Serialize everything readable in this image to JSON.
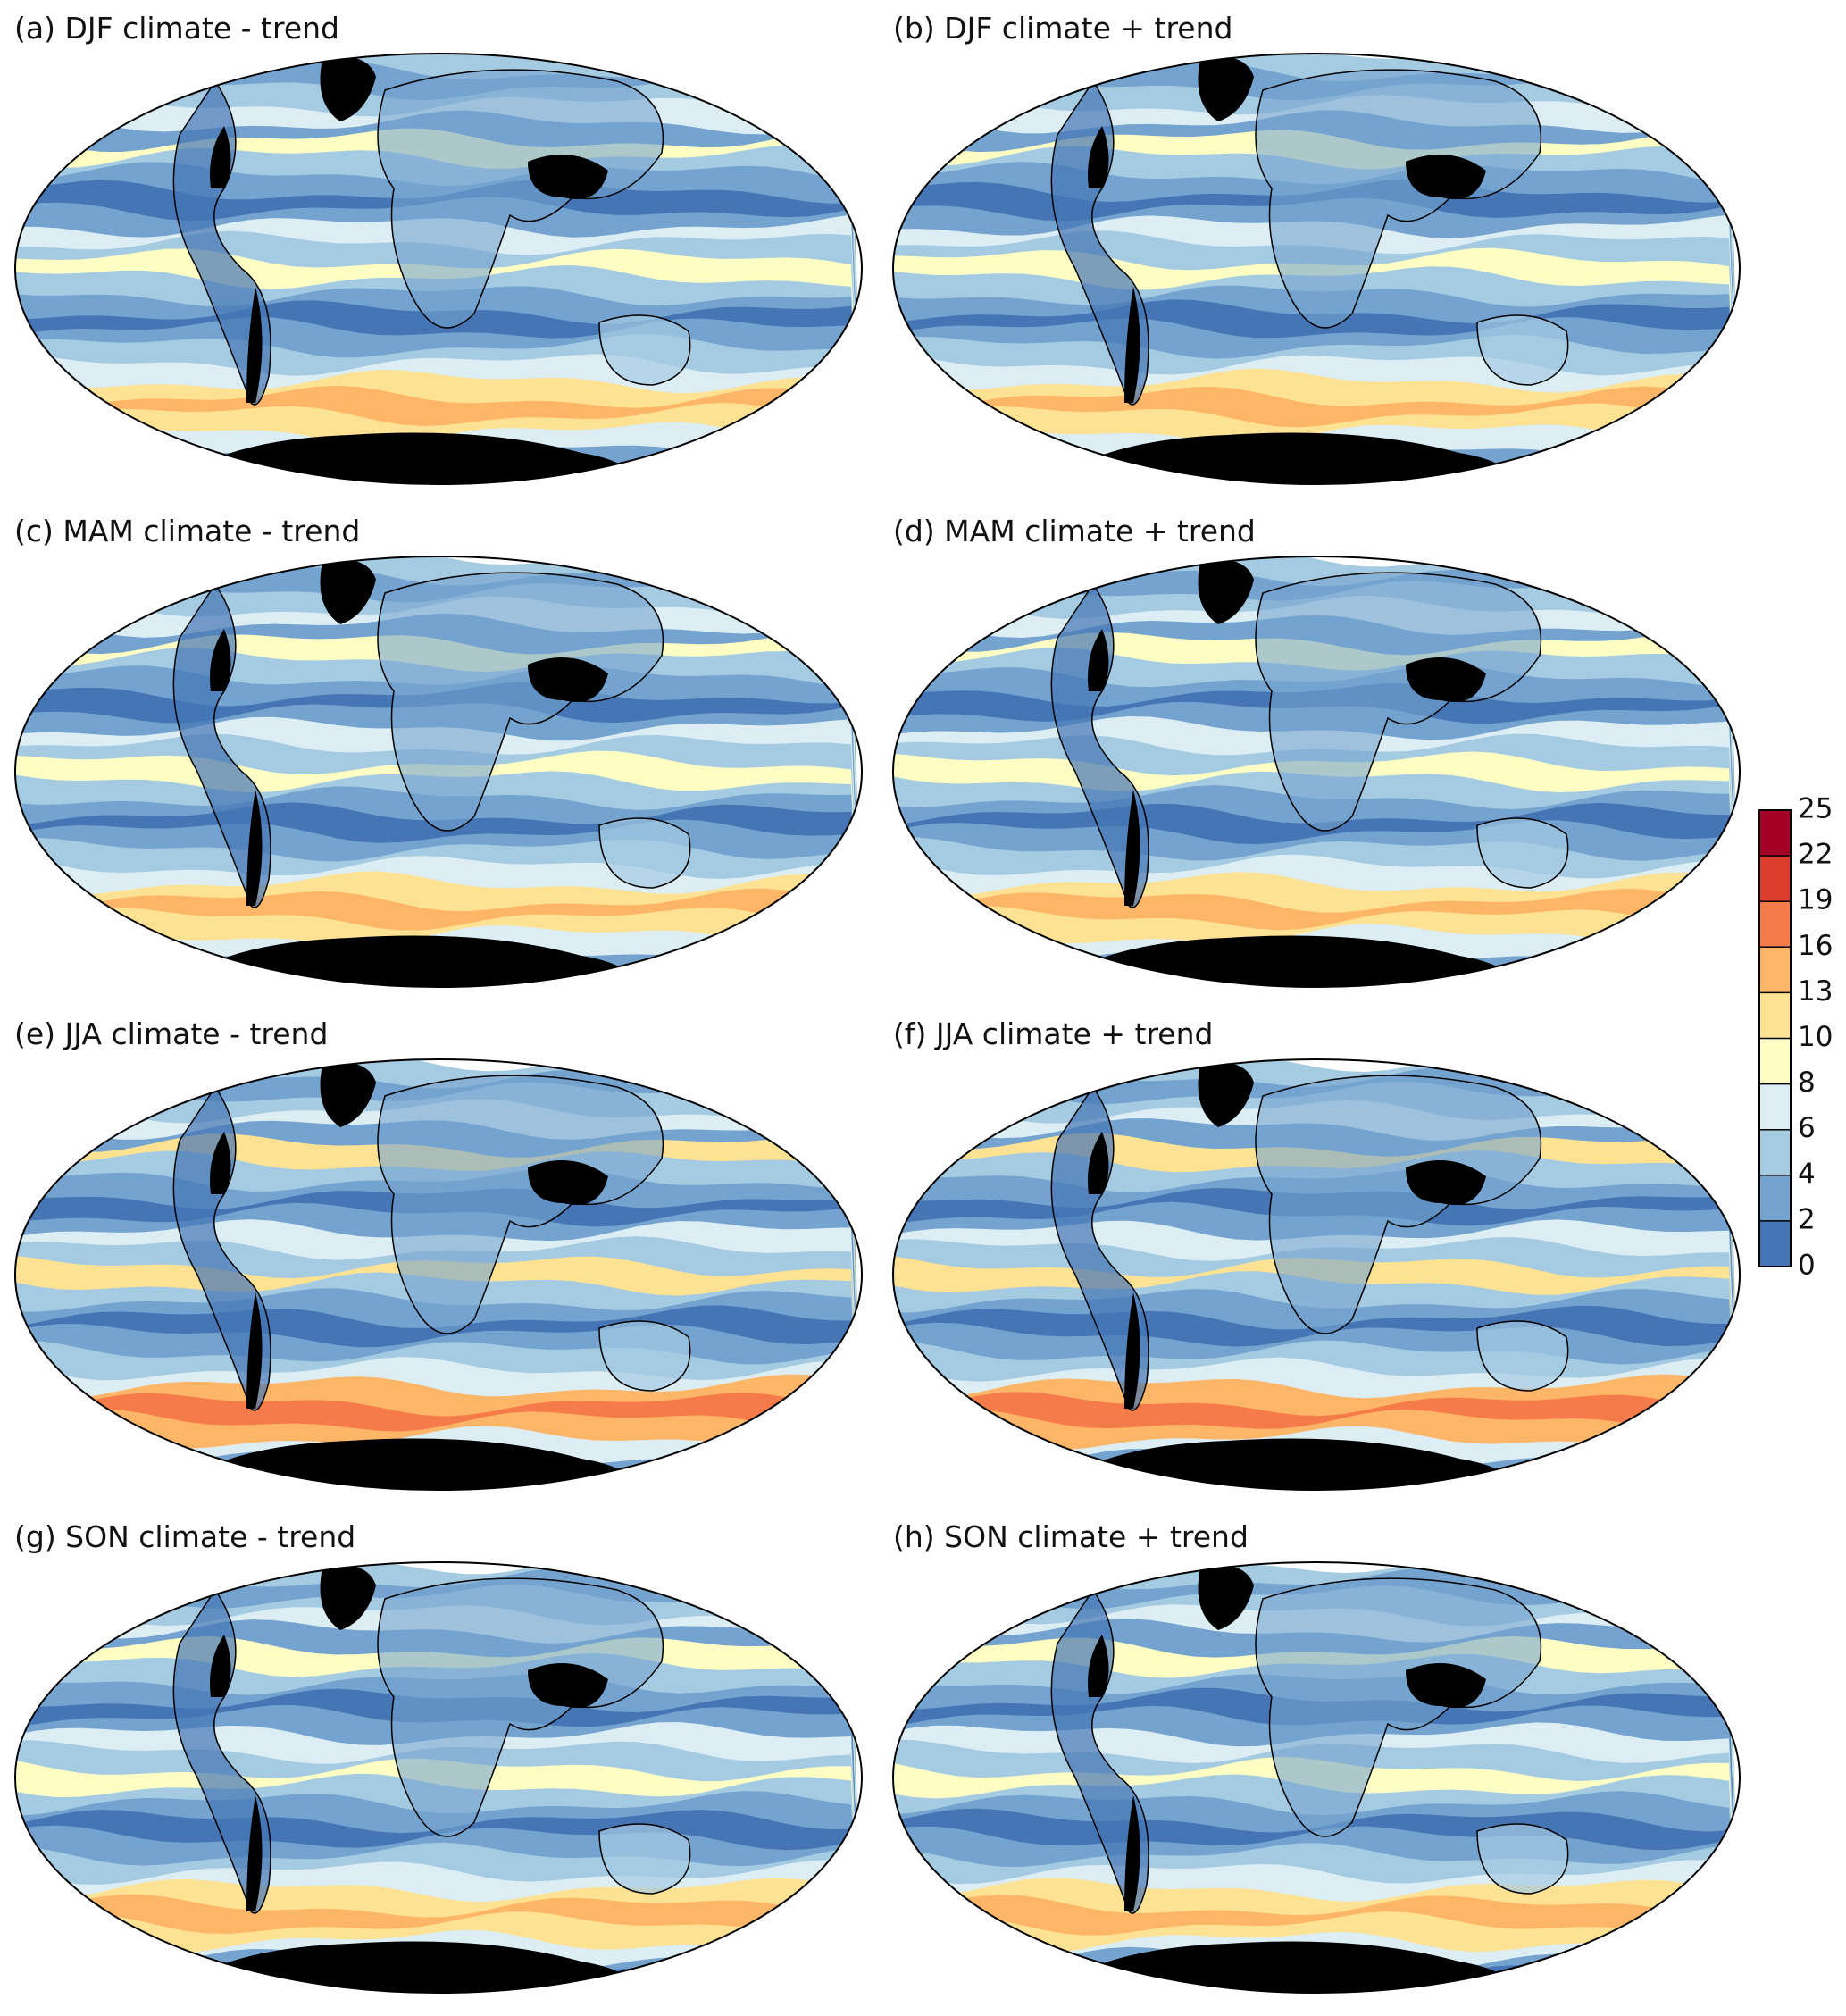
{
  "panels": [
    {
      "title": "(a) DJF climate - trend"
    },
    {
      "title": "(b) DJF climate + trend"
    },
    {
      "title": "(c) MAM climate - trend"
    },
    {
      "title": "(d) MAM climate + trend"
    },
    {
      "title": "(e) JJA climate - trend"
    },
    {
      "title": "(f) JJA climate + trend"
    },
    {
      "title": "(g) SON climate - trend"
    },
    {
      "title": "(h) SON climate + trend"
    }
  ],
  "colorbar": {
    "ticks": [
      0,
      2,
      4,
      6,
      8,
      10,
      13,
      16,
      19,
      22,
      25
    ],
    "colors": [
      "#4575b4",
      "#74a3cf",
      "#a5cbe2",
      "#dcedf4",
      "#fefec4",
      "#fee293",
      "#fdb567",
      "#f57c4a",
      "#dc3d2d",
      "#a50026"
    ]
  }
}
